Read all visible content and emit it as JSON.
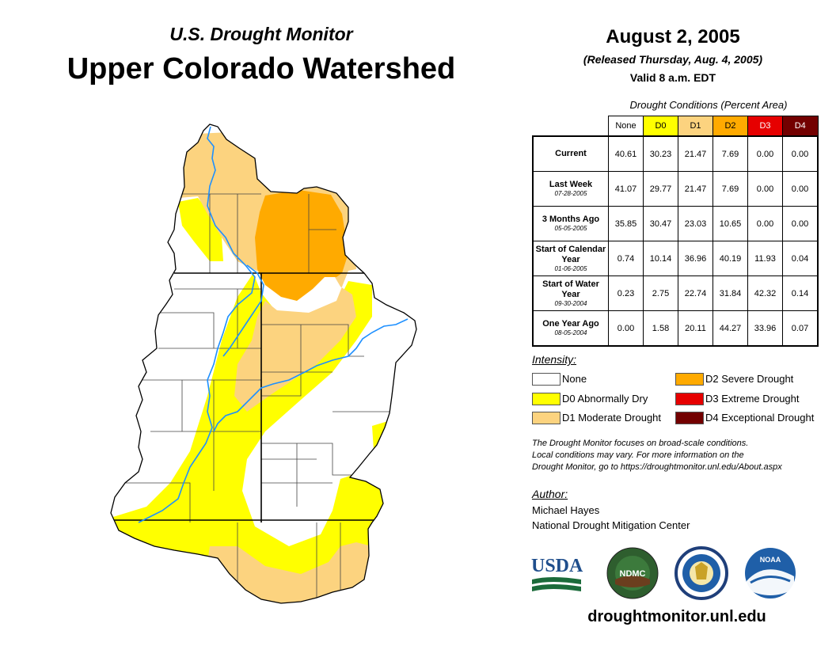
{
  "header": {
    "subtitle": "U.S. Drought Monitor",
    "title": "Upper Colorado Watershed",
    "date": "August 2, 2005",
    "released": "(Released Thursday, Aug. 4, 2005)",
    "valid": "Valid 8 a.m. EDT"
  },
  "table": {
    "caption": "Drought Conditions (Percent Area)",
    "columns": [
      {
        "label": "None",
        "color": "#ffffff"
      },
      {
        "label": "D0",
        "color": "#ffff00"
      },
      {
        "label": "D1",
        "color": "#fcd37f"
      },
      {
        "label": "D2",
        "color": "#ffaa00"
      },
      {
        "label": "D3",
        "color": "#e60000"
      },
      {
        "label": "D4",
        "color": "#730000"
      }
    ],
    "rows": [
      {
        "label": "Current",
        "date": "",
        "values": [
          "40.61",
          "30.23",
          "21.47",
          "7.69",
          "0.00",
          "0.00"
        ]
      },
      {
        "label": "Last Week",
        "date": "07-28-2005",
        "values": [
          "41.07",
          "29.77",
          "21.47",
          "7.69",
          "0.00",
          "0.00"
        ]
      },
      {
        "label": "3 Months Ago",
        "date": "05-05-2005",
        "values": [
          "35.85",
          "30.47",
          "23.03",
          "10.65",
          "0.00",
          "0.00"
        ]
      },
      {
        "label": "Start of Calendar Year",
        "date": "01-06-2005",
        "values": [
          "0.74",
          "10.14",
          "36.96",
          "40.19",
          "11.93",
          "0.04"
        ]
      },
      {
        "label": "Start of Water Year",
        "date": "09-30-2004",
        "values": [
          "0.23",
          "2.75",
          "22.74",
          "31.84",
          "42.32",
          "0.14"
        ]
      },
      {
        "label": "One Year Ago",
        "date": "08-05-2004",
        "values": [
          "0.00",
          "1.58",
          "20.11",
          "44.27",
          "33.96",
          "0.07"
        ]
      }
    ]
  },
  "legend": {
    "title": "Intensity:",
    "items": [
      {
        "label": "None",
        "color": "#ffffff"
      },
      {
        "label": "D0 Abnormally Dry",
        "color": "#ffff00"
      },
      {
        "label": "D1 Moderate Drought",
        "color": "#fcd37f"
      },
      {
        "label": "D2 Severe Drought",
        "color": "#ffaa00"
      },
      {
        "label": "D3 Extreme Drought",
        "color": "#e60000"
      },
      {
        "label": "D4 Exceptional Drought",
        "color": "#730000"
      }
    ]
  },
  "note": {
    "line1": "The Drought Monitor focuses on broad-scale conditions.",
    "line2": "Local conditions may vary. For more information on the",
    "line3": "Drought Monitor, go to https://droughtmonitor.unl.edu/About.aspx"
  },
  "author": {
    "label": "Author:",
    "name": "Michael Hayes",
    "org": "National Drought Mitigation Center"
  },
  "logos": {
    "usda": "USDA",
    "ndmc": "NDMC",
    "noaa": "NOAA"
  },
  "footer": {
    "url": "droughtmonitor.unl.edu"
  },
  "colors": {
    "river": "#1e90ff",
    "boundary": "#000000"
  }
}
